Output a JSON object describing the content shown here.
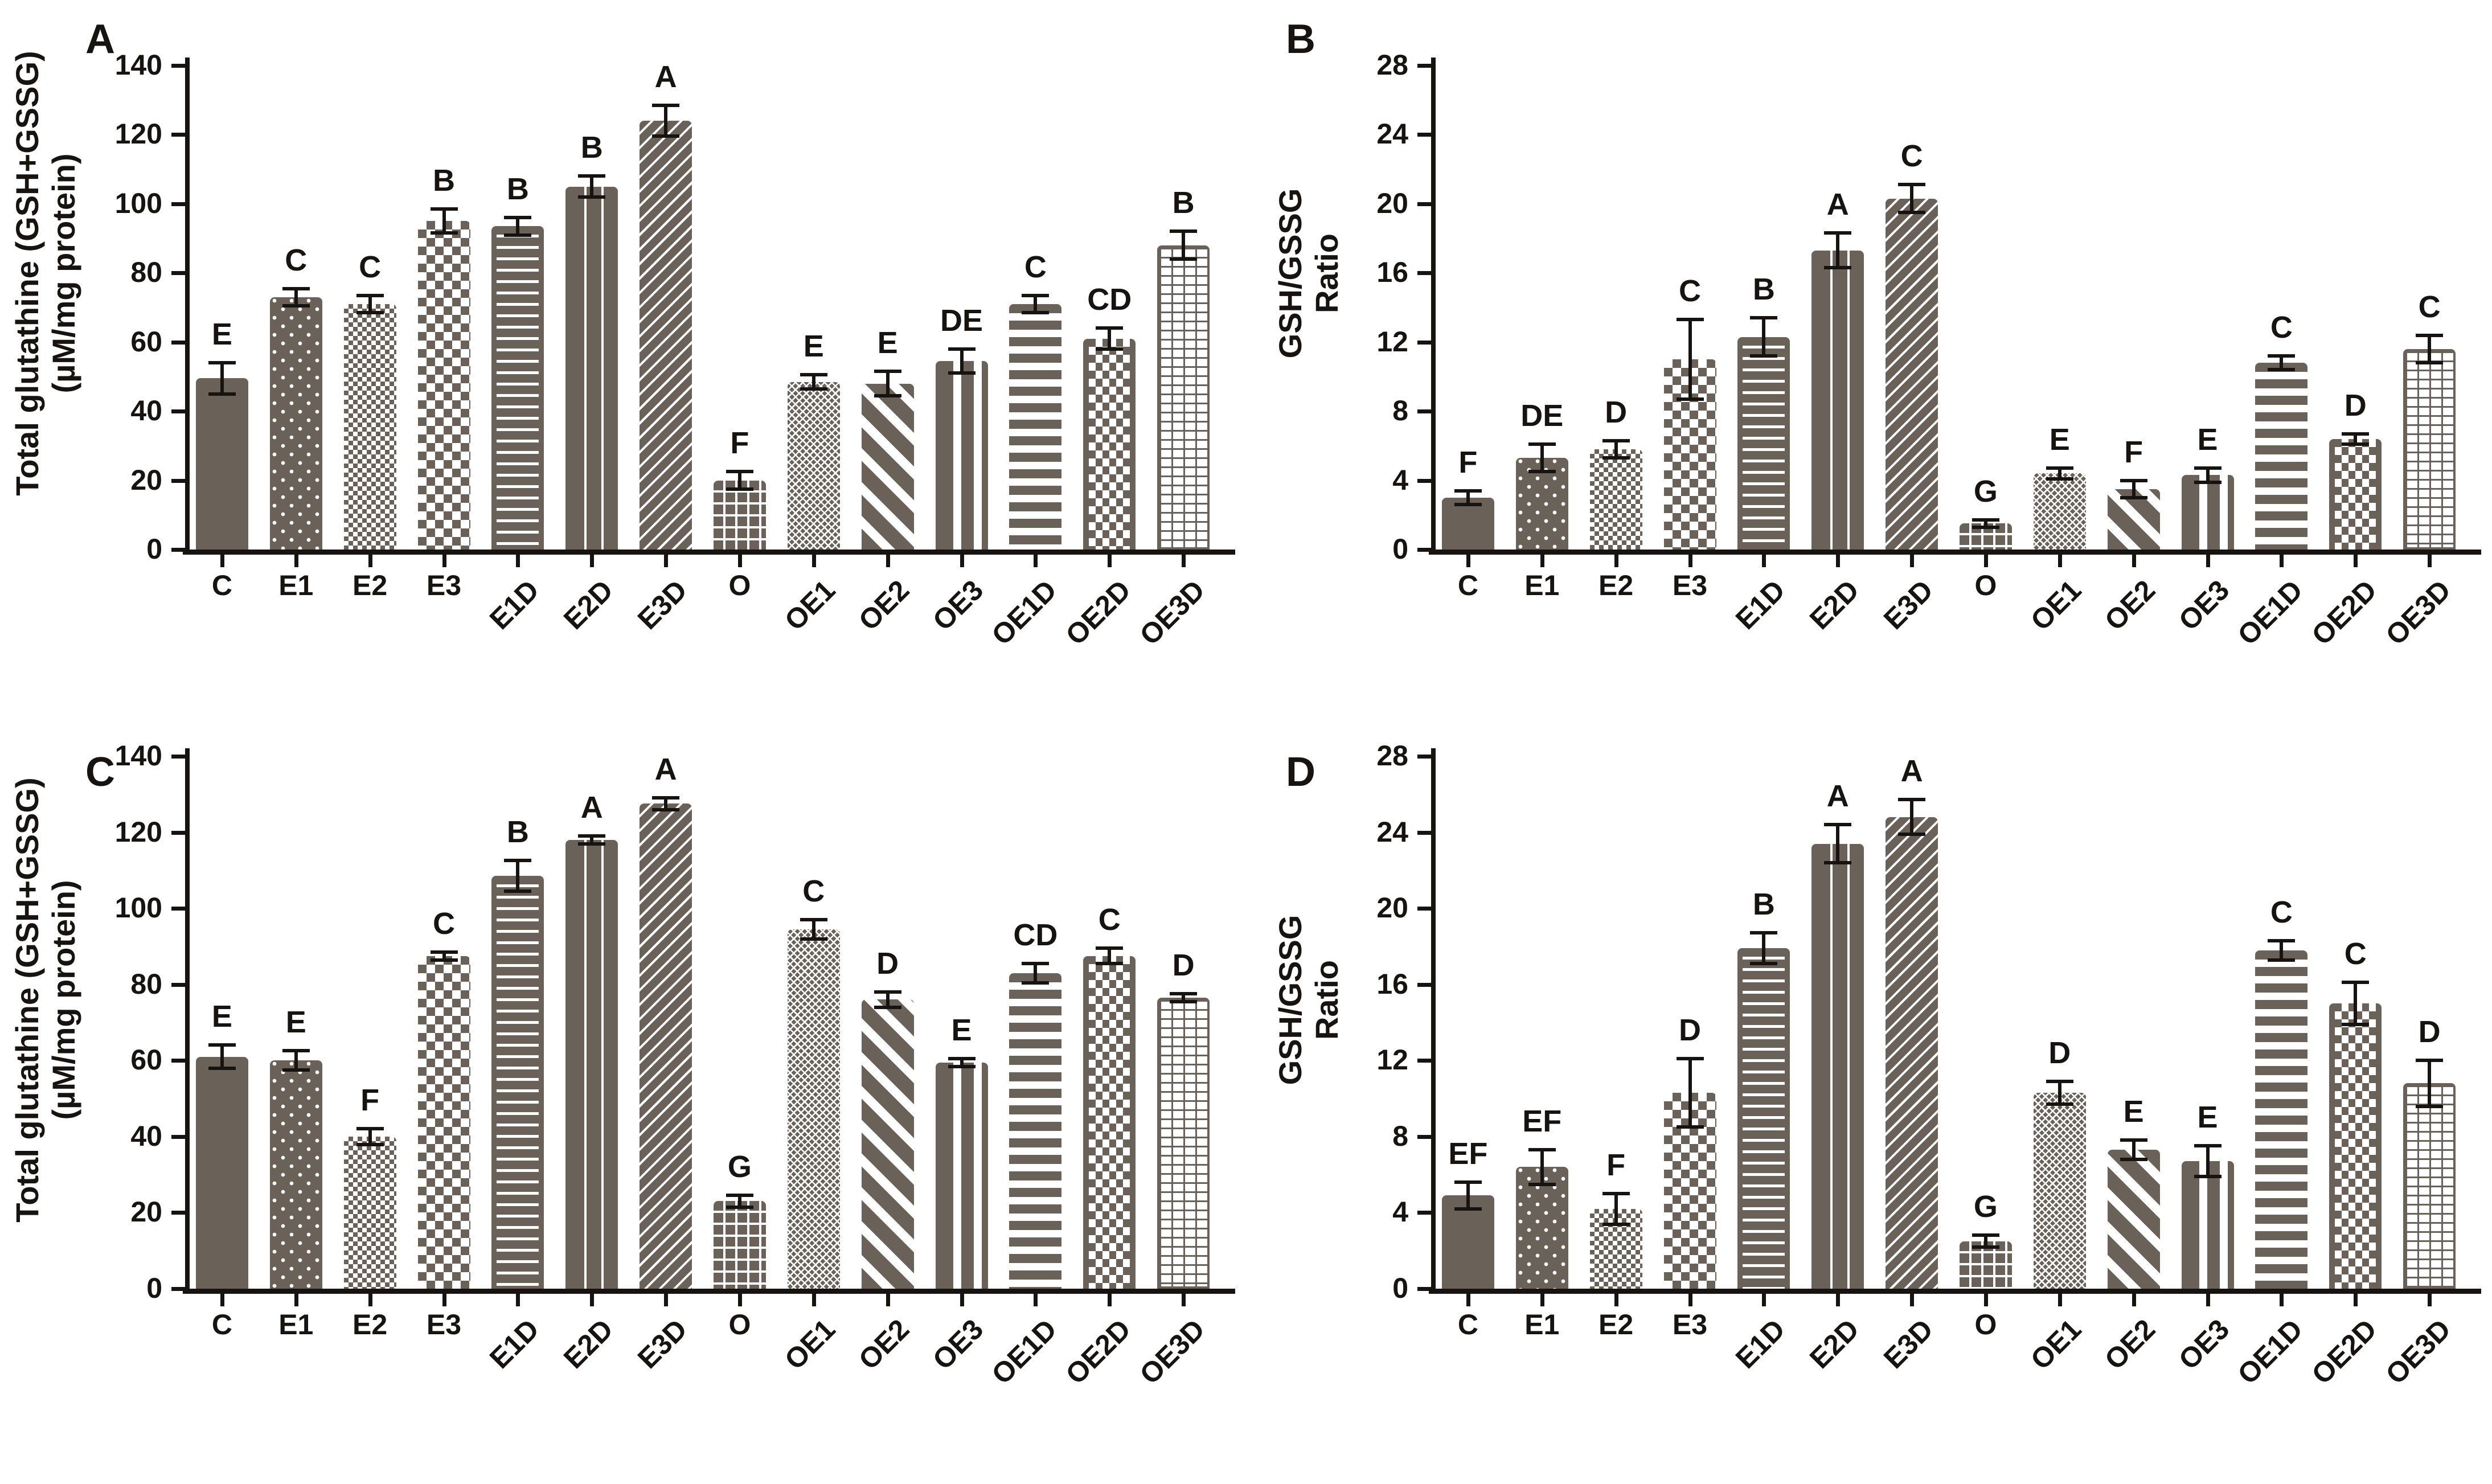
{
  "figure": {
    "background": "#ffffff",
    "bar_color": "#6a6158",
    "axis_color": "#161311",
    "categories": [
      "C",
      "E1",
      "E2",
      "E3",
      "E1D",
      "E2D",
      "E3D",
      "O",
      "OE1",
      "OE2",
      "OE3",
      "OE1D",
      "OE2D",
      "OE3D"
    ],
    "category_rotated": [
      false,
      false,
      false,
      false,
      true,
      true,
      true,
      false,
      true,
      true,
      true,
      true,
      true,
      true
    ],
    "pattern_icons": [
      "solid",
      "dots",
      "checker-fine",
      "checker",
      "h-dash",
      "v-line",
      "diag-thin",
      "grid",
      "crosshatch",
      "diag-wide",
      "v-stripe",
      "h-stripe",
      "v-dash",
      "brick"
    ]
  },
  "chart_data": [
    {
      "type": "bar",
      "panel": "A",
      "title": "",
      "xlabel": "",
      "ylabel_lines": [
        "Total glutathine (GSH+GSSG)",
        "(µM/mg protein)"
      ],
      "ylim": [
        0,
        140
      ],
      "yticks": [
        0,
        20,
        40,
        60,
        80,
        100,
        120,
        140
      ],
      "grid": false,
      "categories": [
        "C",
        "E1",
        "E2",
        "E3",
        "E1D",
        "E2D",
        "E3D",
        "O",
        "OE1",
        "OE2",
        "OE3",
        "OE1D",
        "OE2D",
        "OE3D"
      ],
      "values": [
        49.5,
        73,
        71,
        95,
        93.5,
        105,
        124,
        20,
        48.5,
        48,
        54.5,
        71,
        61,
        88
      ],
      "errors": [
        5,
        3,
        3,
        4,
        3,
        3.5,
        5,
        3,
        2.5,
        4,
        4,
        3,
        3.5,
        4.5
      ],
      "letters": [
        "E",
        "C",
        "C",
        "B",
        "B",
        "B",
        "A",
        "F",
        "E",
        "E",
        "DE",
        "C",
        "CD",
        "B"
      ]
    },
    {
      "type": "bar",
      "panel": "B",
      "title": "",
      "xlabel": "",
      "ylabel_lines": [
        "GSH/GSSG",
        "Ratio"
      ],
      "ylim": [
        0,
        28
      ],
      "yticks": [
        0,
        4,
        8,
        12,
        16,
        20,
        24,
        28
      ],
      "grid": false,
      "categories": [
        "C",
        "E1",
        "E2",
        "E3",
        "E1D",
        "E2D",
        "E3D",
        "O",
        "OE1",
        "OE2",
        "OE3",
        "OE1D",
        "OE2D",
        "OE3D"
      ],
      "values": [
        3,
        5.3,
        5.8,
        11,
        12.3,
        17.3,
        20.3,
        1.5,
        4.4,
        3.5,
        4.3,
        10.8,
        6.4,
        11.6
      ],
      "errors": [
        0.5,
        0.9,
        0.6,
        2.4,
        1.2,
        1.1,
        0.9,
        0.3,
        0.4,
        0.6,
        0.5,
        0.5,
        0.4,
        0.9
      ],
      "letters": [
        "F",
        "DE",
        "D",
        "C",
        "B",
        "A",
        "C",
        "G",
        "E",
        "F",
        "E",
        "C",
        "D",
        "C"
      ]
    },
    {
      "type": "bar",
      "panel": "C",
      "title": "",
      "xlabel": "",
      "ylabel_lines": [
        "Total glutathine (GSH+GSSG)",
        "(µM/mg protein)"
      ],
      "ylim": [
        0,
        140
      ],
      "yticks": [
        0,
        20,
        40,
        60,
        80,
        100,
        120,
        140
      ],
      "grid": false,
      "categories": [
        "C",
        "E1",
        "E2",
        "E3",
        "E1D",
        "E2D",
        "E3D",
        "O",
        "OE1",
        "OE2",
        "OE3",
        "OE1D",
        "OE2D",
        "OE3D"
      ],
      "values": [
        61,
        60,
        40,
        87.5,
        108.5,
        118,
        127.5,
        23,
        94.5,
        76,
        59.5,
        83,
        87.5,
        76.5
      ],
      "errors": [
        3.5,
        3,
        2.5,
        1.5,
        4.5,
        1.5,
        2,
        2,
        3,
        2.5,
        1.5,
        3,
        2.5,
        1.5
      ],
      "letters": [
        "E",
        "E",
        "F",
        "C",
        "B",
        "A",
        "A",
        "G",
        "C",
        "D",
        "E",
        "CD",
        "C",
        "D"
      ]
    },
    {
      "type": "bar",
      "panel": "D",
      "title": "",
      "xlabel": "",
      "ylabel_lines": [
        "GSH/GSSG",
        "Ratio"
      ],
      "ylim": [
        0,
        28
      ],
      "yticks": [
        0,
        4,
        8,
        12,
        16,
        20,
        24,
        28
      ],
      "grid": false,
      "categories": [
        "C",
        "E1",
        "E2",
        "E3",
        "E1D",
        "E2D",
        "E3D",
        "O",
        "OE1",
        "OE2",
        "OE3",
        "OE1D",
        "OE2D",
        "OE3D"
      ],
      "values": [
        4.9,
        6.4,
        4.2,
        10.3,
        17.9,
        23.4,
        24.8,
        2.5,
        10.3,
        7.3,
        6.7,
        17.8,
        15,
        10.8
      ],
      "errors": [
        0.8,
        1,
        0.9,
        1.9,
        0.9,
        1.1,
        1,
        0.4,
        0.7,
        0.6,
        0.9,
        0.6,
        1.2,
        1.3
      ],
      "letters": [
        "EF",
        "EF",
        "F",
        "D",
        "B",
        "A",
        "A",
        "G",
        "D",
        "E",
        "E",
        "C",
        "C",
        "D"
      ]
    }
  ]
}
